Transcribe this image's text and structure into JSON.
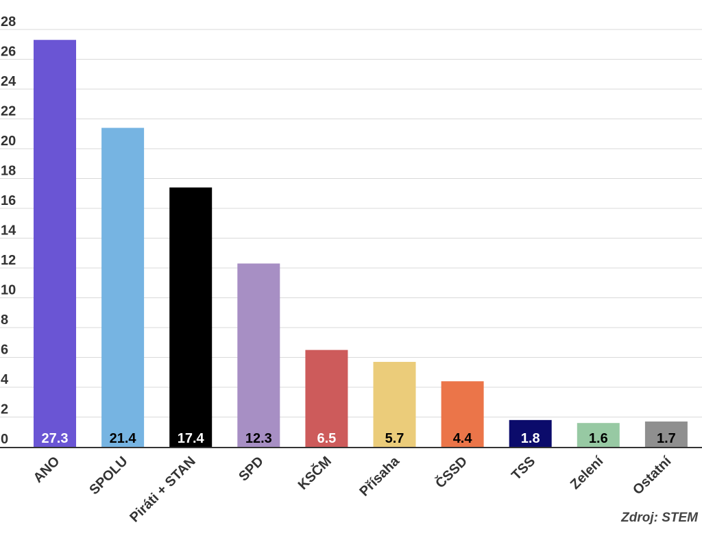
{
  "chart_data": {
    "type": "bar",
    "categories": [
      "ANO",
      "SPOLU",
      "Piráti + STAN",
      "SPD",
      "KSČM",
      "Přísaha",
      "ČSSD",
      "TSS",
      "Zelení",
      "Ostatní"
    ],
    "values": [
      27.3,
      21.4,
      17.4,
      12.3,
      6.5,
      5.7,
      4.4,
      1.8,
      1.6,
      1.7
    ],
    "value_labels": [
      "27.3",
      "21.4",
      "17.4",
      "12.3",
      "6.5",
      "5.7",
      "4.4",
      "1.8",
      "1.6",
      "1.7"
    ],
    "colors": [
      "#6a55d4",
      "#76b4e2",
      "#000000",
      "#a78fc4",
      "#cd5b5b",
      "#ebcc7a",
      "#eb7549",
      "#0b0b6b",
      "#97c9a3",
      "#8f8f8f"
    ],
    "label_colors": [
      "#ffffff",
      "#000000",
      "#ffffff",
      "#000000",
      "#ffffff",
      "#000000",
      "#000000",
      "#ffffff",
      "#000000",
      "#000000"
    ],
    "yticks": [
      "0",
      "2",
      "4",
      "6",
      "8",
      "10",
      "12",
      "14",
      "16",
      "18",
      "20",
      "22",
      "24",
      "26",
      "28"
    ],
    "ylim": [
      0,
      28
    ],
    "grid": true,
    "title": "",
    "xlabel": "",
    "ylabel": ""
  },
  "source": "Zdroj: STEM"
}
